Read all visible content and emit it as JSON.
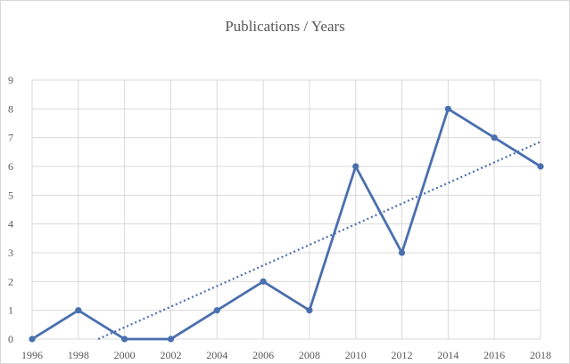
{
  "chart_data": {
    "type": "line",
    "title": "Publications / Years",
    "xlabel": "",
    "ylabel": "",
    "x": [
      "1996",
      "1998",
      "2000",
      "2002",
      "2004",
      "2006",
      "2008",
      "2010",
      "2012",
      "2014",
      "2016",
      "2018"
    ],
    "series": [
      {
        "values": [
          0,
          1,
          0,
          0,
          1,
          2,
          1,
          6,
          3,
          8,
          7,
          6
        ],
        "color": "#4a6fae",
        "markers": true
      }
    ],
    "trendline": {
      "kind": "linear",
      "style": "dotted",
      "color": "#4a6fae"
    },
    "ylim": [
      0,
      9
    ],
    "yticks": [
      0,
      1,
      2,
      3,
      4,
      5,
      6,
      7,
      8,
      9
    ],
    "grid": true,
    "legend": "none"
  }
}
